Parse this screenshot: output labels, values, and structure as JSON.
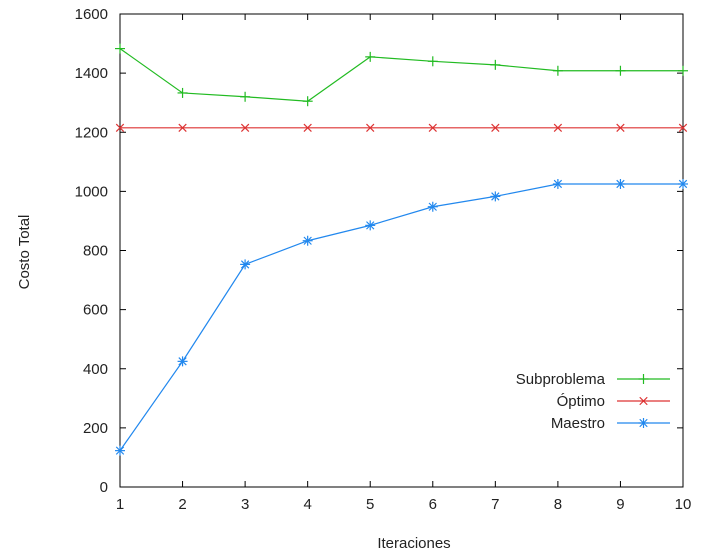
{
  "chart_data": {
    "type": "line",
    "title": "",
    "xlabel": "Iteraciones",
    "ylabel": "Costo Total",
    "x": [
      1,
      2,
      3,
      4,
      5,
      6,
      7,
      8,
      9,
      10
    ],
    "xlim": [
      1,
      10
    ],
    "ylim": [
      0,
      1600
    ],
    "xticks": [
      1,
      2,
      3,
      4,
      5,
      6,
      7,
      8,
      9,
      10
    ],
    "yticks": [
      0,
      200,
      400,
      600,
      800,
      1000,
      1200,
      1400,
      1600
    ],
    "grid": false,
    "legend_position": "bottom-right",
    "series": [
      {
        "name": "Subproblema",
        "color": "#22bb22",
        "marker": "plus",
        "values": [
          1483,
          1333,
          1320,
          1305,
          1455,
          1440,
          1428,
          1408,
          1408,
          1408
        ]
      },
      {
        "name": "Óptimo",
        "color": "#dd3333",
        "marker": "cross",
        "values": [
          1215,
          1215,
          1215,
          1215,
          1215,
          1215,
          1215,
          1215,
          1215,
          1215
        ]
      },
      {
        "name": "Maestro",
        "color": "#2288ee",
        "marker": "star",
        "values": [
          123,
          425,
          753,
          833,
          885,
          948,
          983,
          1025,
          1025,
          1025
        ]
      }
    ]
  }
}
